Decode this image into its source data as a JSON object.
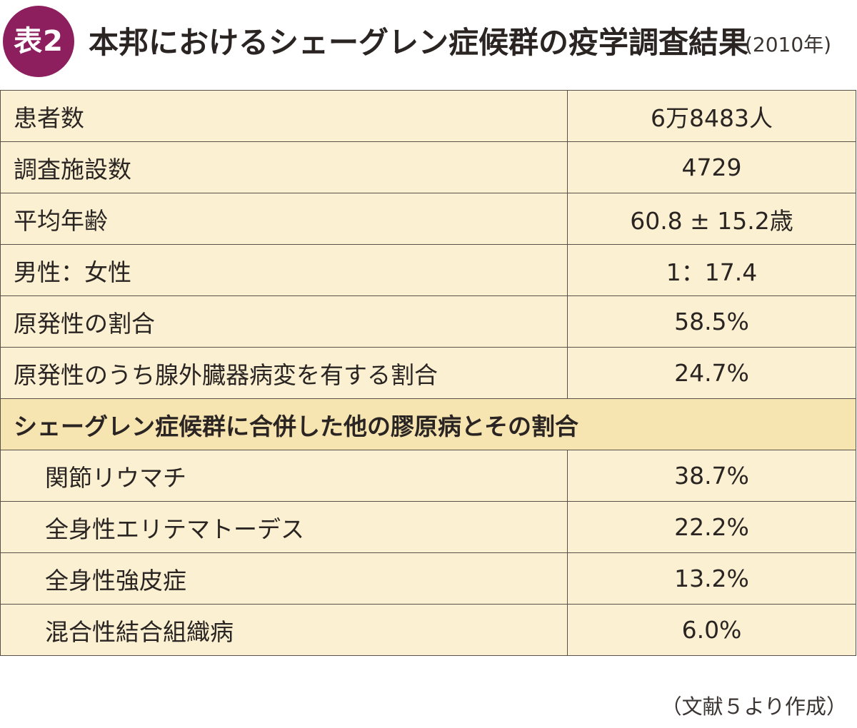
{
  "header": {
    "badge": "表2",
    "title": "本邦におけるシェーグレン症候群の疫学調査結果",
    "year": "(2010年)"
  },
  "table": {
    "rows": [
      {
        "label": "患者数",
        "value": "6万8483人"
      },
      {
        "label": "調査施設数",
        "value": "4729"
      },
      {
        "label": "平均年齢",
        "value": "60.8 ± 15.2歳"
      },
      {
        "label": "男性：女性",
        "value": "1：17.4"
      },
      {
        "label": "原発性の割合",
        "value": "58.5%"
      },
      {
        "label": "原発性のうち腺外臓器病変を有する割合",
        "value": "24.7%"
      }
    ],
    "section_header": "シェーグレン症候群に合併した他の膠原病とその割合",
    "sub_rows": [
      {
        "label": "関節リウマチ",
        "value": "38.7%"
      },
      {
        "label": "全身性エリテマトーデス",
        "value": "22.2%"
      },
      {
        "label": "全身性強皮症",
        "value": "13.2%"
      },
      {
        "label": "混合性結合組織病",
        "value": "6.0%"
      }
    ]
  },
  "source": "（文献５より作成）",
  "colors": {
    "badge": "#8e1f5e",
    "cell_background": "#fbf1d2",
    "section_background": "#f6e4b1",
    "border": "#5a504a"
  }
}
